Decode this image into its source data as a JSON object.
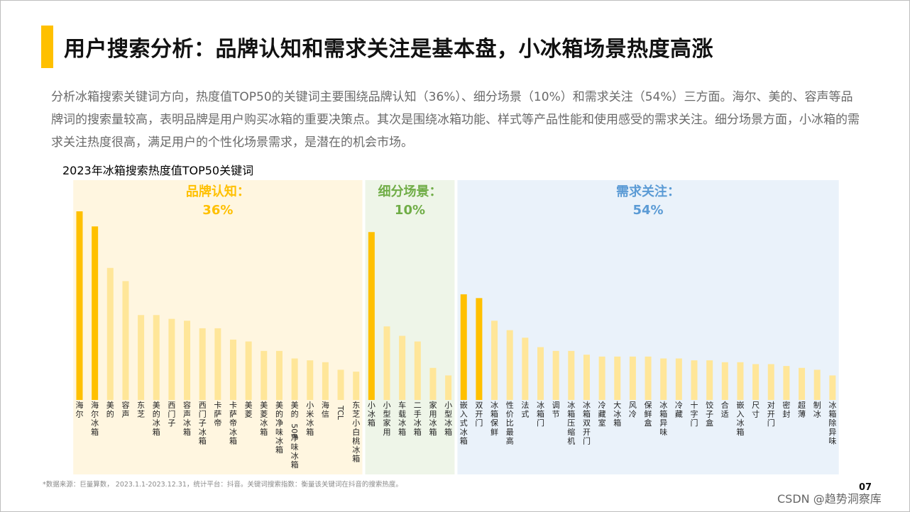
{
  "header": {
    "title": "用户搜索分析：品牌认知和需求关注是基本盘，小冰箱场景热度高涨",
    "accent_color": "#FFC000"
  },
  "description": "分析冰箱搜索关键词方向，热度值TOP50的关键词主要围绕品牌认知（36%）、细分场景（10%）和需求关注（54%）三方面。海尔、美的、容声等品牌词的搜索量较高，表明品牌是用户购买冰箱的重要决策点。其次是围绕冰箱功能、样式等产品性能和使用感受的需求关注。细分场景方面，小冰箱的需求关注热度很高，满足用户的个性化场景需求，是潜在的机会市场。",
  "chart_data": {
    "type": "bar",
    "title": "2023年冰箱搜索热度值TOP50关键词",
    "highlight_color": "#FFC000",
    "base_color": "#FFE699",
    "ylim": [
      0,
      100
    ],
    "groups": [
      {
        "name": "品牌认知：",
        "percent": "36%",
        "color": "#FFC000",
        "bg": "#FFF6E0",
        "categories": [
          "海尔",
          "海尔冰箱",
          "美的",
          "容声",
          "东芝",
          "美的冰箱",
          "西门子",
          "容声冰箱",
          "西门子冰箱",
          "卡萨帝",
          "卡萨帝冰箱",
          "美菱",
          "美菱冰箱",
          "美的净味冰箱",
          "美的508净味冰箱",
          "小米冰箱",
          "海信",
          "TCL",
          "东芝小白桃冰箱"
        ],
        "values": [
          100,
          92,
          70,
          63,
          45,
          45,
          43,
          42,
          38,
          38,
          32,
          31,
          26,
          26,
          22,
          21,
          20,
          16,
          15
        ],
        "highlight": [
          true,
          true,
          false,
          false,
          false,
          false,
          false,
          false,
          false,
          false,
          false,
          false,
          false,
          false,
          false,
          false,
          false,
          false,
          false
        ]
      },
      {
        "name": "细分场景：",
        "percent": "10%",
        "color": "#70AD47",
        "bg": "#EEF5E8",
        "categories": [
          "小冰箱",
          "小型家用",
          "车载冰箱",
          "二手冰箱",
          "家用冰箱",
          "小型冰箱"
        ],
        "values": [
          89,
          39,
          34,
          31,
          17,
          13
        ],
        "highlight": [
          true,
          false,
          false,
          false,
          false,
          false
        ]
      },
      {
        "name": "需求关注：",
        "percent": "54%",
        "color": "#5B9BD5",
        "bg": "#EAF2FA",
        "categories": [
          "嵌入式冰箱",
          "双开门",
          "冰箱保鲜",
          "性价比最高",
          "法式",
          "冰箱门",
          "调节",
          "冰箱压缩机",
          "冰箱双开门",
          "冷藏室",
          "大冰箱",
          "风冷",
          "保鲜盒",
          "冰箱异味",
          "冷藏",
          "十字门",
          "饺子盒",
          "合适",
          "嵌入冰箱",
          "尺寸",
          "对开门",
          "密封",
          "超薄",
          "制冰",
          "冰箱除异味"
        ],
        "values": [
          56,
          54,
          42,
          37,
          33,
          28,
          26,
          26,
          24,
          23,
          23,
          23,
          23,
          22,
          22,
          21,
          21,
          20,
          20,
          19,
          19,
          18,
          17,
          16,
          13
        ],
        "highlight": [
          true,
          true,
          false,
          false,
          false,
          false,
          false,
          false,
          false,
          false,
          false,
          false,
          false,
          false,
          false,
          false,
          false,
          false,
          false,
          false,
          false,
          false,
          false,
          false,
          false
        ]
      }
    ]
  },
  "footnote": "*数据来源：巨量算数， 2023.1.1-2023.12.31，统计平台：抖音。关键词搜索指数：衡量该关键词在抖音的搜索热度。",
  "page_number": "07",
  "watermark": "CSDN @趋势洞察库"
}
